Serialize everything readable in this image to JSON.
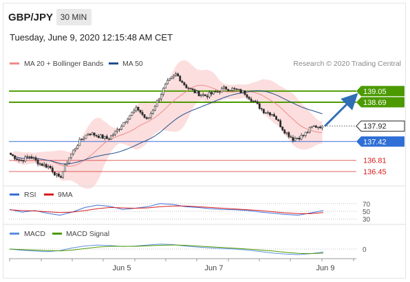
{
  "header": {
    "pair": "GBP/JPY",
    "timeframe": "30 MIN",
    "datetime": "Tuesday, June 9, 2020 12:15:48 AM CET"
  },
  "legend": {
    "ma20_label": "MA 20 + Bollinger Bands",
    "ma50_label": "MA 50",
    "credit": "Research © 2020 Trading Central",
    "ma20_color": "#f08a8a",
    "ma50_color": "#1f4e8c"
  },
  "rsi_legend": {
    "rsi_label": "RSI",
    "ma_label": "9MA",
    "rsi_color": "#3a6fd8",
    "ma_color": "#d81c1c"
  },
  "macd_legend": {
    "macd_label": "MACD",
    "signal_label": "MACD Signal",
    "macd_color": "#5b8fe0",
    "signal_color": "#4c9a00"
  },
  "chart_data": {
    "type": "candlestick",
    "price_axis": {
      "min": 136.05,
      "max": 139.6
    },
    "levels": [
      {
        "price": 139.05,
        "label": "139.05",
        "kind": "resistance",
        "color": "#4c9a00"
      },
      {
        "price": 138.69,
        "label": "138.69",
        "kind": "resistance",
        "color": "#4c9a00"
      },
      {
        "price": 137.92,
        "label": "137.92",
        "kind": "last",
        "color": "#222222"
      },
      {
        "price": 137.42,
        "label": "137.42",
        "kind": "pivot",
        "color": "#3a6fd8"
      },
      {
        "price": 136.81,
        "label": "136.81",
        "kind": "support",
        "color": "#d81c1c"
      },
      {
        "price": 136.45,
        "label": "136.45",
        "kind": "support",
        "color": "#d81c1c"
      }
    ],
    "x_labels": [
      "Jun 5",
      "Jun 7",
      "Jun 9"
    ],
    "rsi_levels": [
      "70",
      "50",
      "30"
    ],
    "macd_zero": "0",
    "key_prices": [
      137.0,
      136.8,
      136.95,
      136.7,
      136.6,
      136.2,
      136.9,
      137.4,
      137.7,
      137.6,
      137.5,
      137.8,
      138.2,
      138.5,
      138.1,
      138.7,
      139.3,
      139.6,
      139.2,
      139.0,
      138.9,
      139.0,
      139.15,
      139.1,
      139.0,
      138.7,
      138.4,
      138.3,
      137.8,
      137.5,
      137.6,
      137.9,
      137.92
    ],
    "rsi_values": [
      55,
      48,
      52,
      45,
      40,
      48,
      60,
      66,
      63,
      55,
      58,
      62,
      70,
      68,
      62,
      60,
      57,
      55,
      54,
      52,
      48,
      45,
      42,
      40,
      46,
      52
    ],
    "rsi_ma_values": [
      54,
      52,
      51,
      49,
      47,
      48,
      52,
      57,
      60,
      59,
      58,
      59,
      62,
      64,
      64,
      62,
      60,
      58,
      56,
      54,
      52,
      49,
      46,
      44,
      44,
      47
    ],
    "macd_values": [
      0.0,
      -0.05,
      -0.08,
      -0.1,
      -0.06,
      0.05,
      0.12,
      0.16,
      0.14,
      0.1,
      0.12,
      0.16,
      0.2,
      0.18,
      0.12,
      0.08,
      0.05,
      0.02,
      0.0,
      -0.04,
      -0.1,
      -0.16,
      -0.2,
      -0.22,
      -0.18,
      -0.12
    ],
    "signal_values": [
      0.0,
      -0.02,
      -0.04,
      -0.06,
      -0.07,
      -0.04,
      0.02,
      0.08,
      0.11,
      0.11,
      0.11,
      0.13,
      0.15,
      0.16,
      0.15,
      0.12,
      0.09,
      0.06,
      0.03,
      0.0,
      -0.04,
      -0.08,
      -0.13,
      -0.17,
      -0.18,
      -0.16
    ]
  }
}
